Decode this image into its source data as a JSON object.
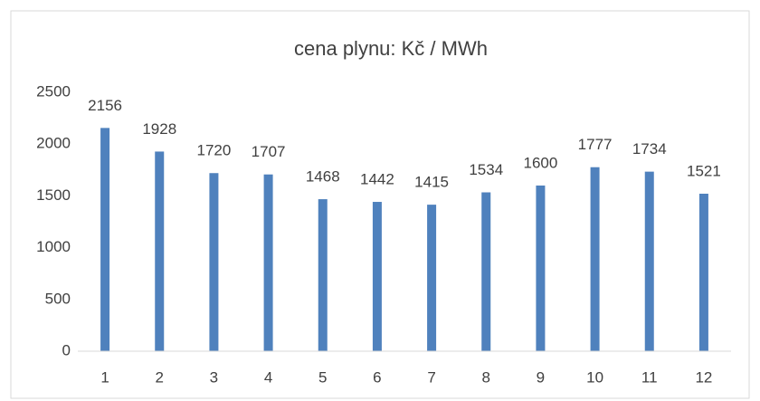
{
  "chart_data": {
    "type": "bar",
    "title": "cena plynu: Kč / MWh",
    "categories": [
      "1",
      "2",
      "3",
      "4",
      "5",
      "6",
      "7",
      "8",
      "9",
      "10",
      "11",
      "12"
    ],
    "values": [
      2156,
      1928,
      1720,
      1707,
      1468,
      1442,
      1415,
      1534,
      1600,
      1777,
      1734,
      1521
    ],
    "color": "#4f81bd",
    "ylim": [
      0,
      2500
    ],
    "yticks": [
      0,
      500,
      1000,
      1500,
      2000,
      2500
    ],
    "grid": false
  }
}
